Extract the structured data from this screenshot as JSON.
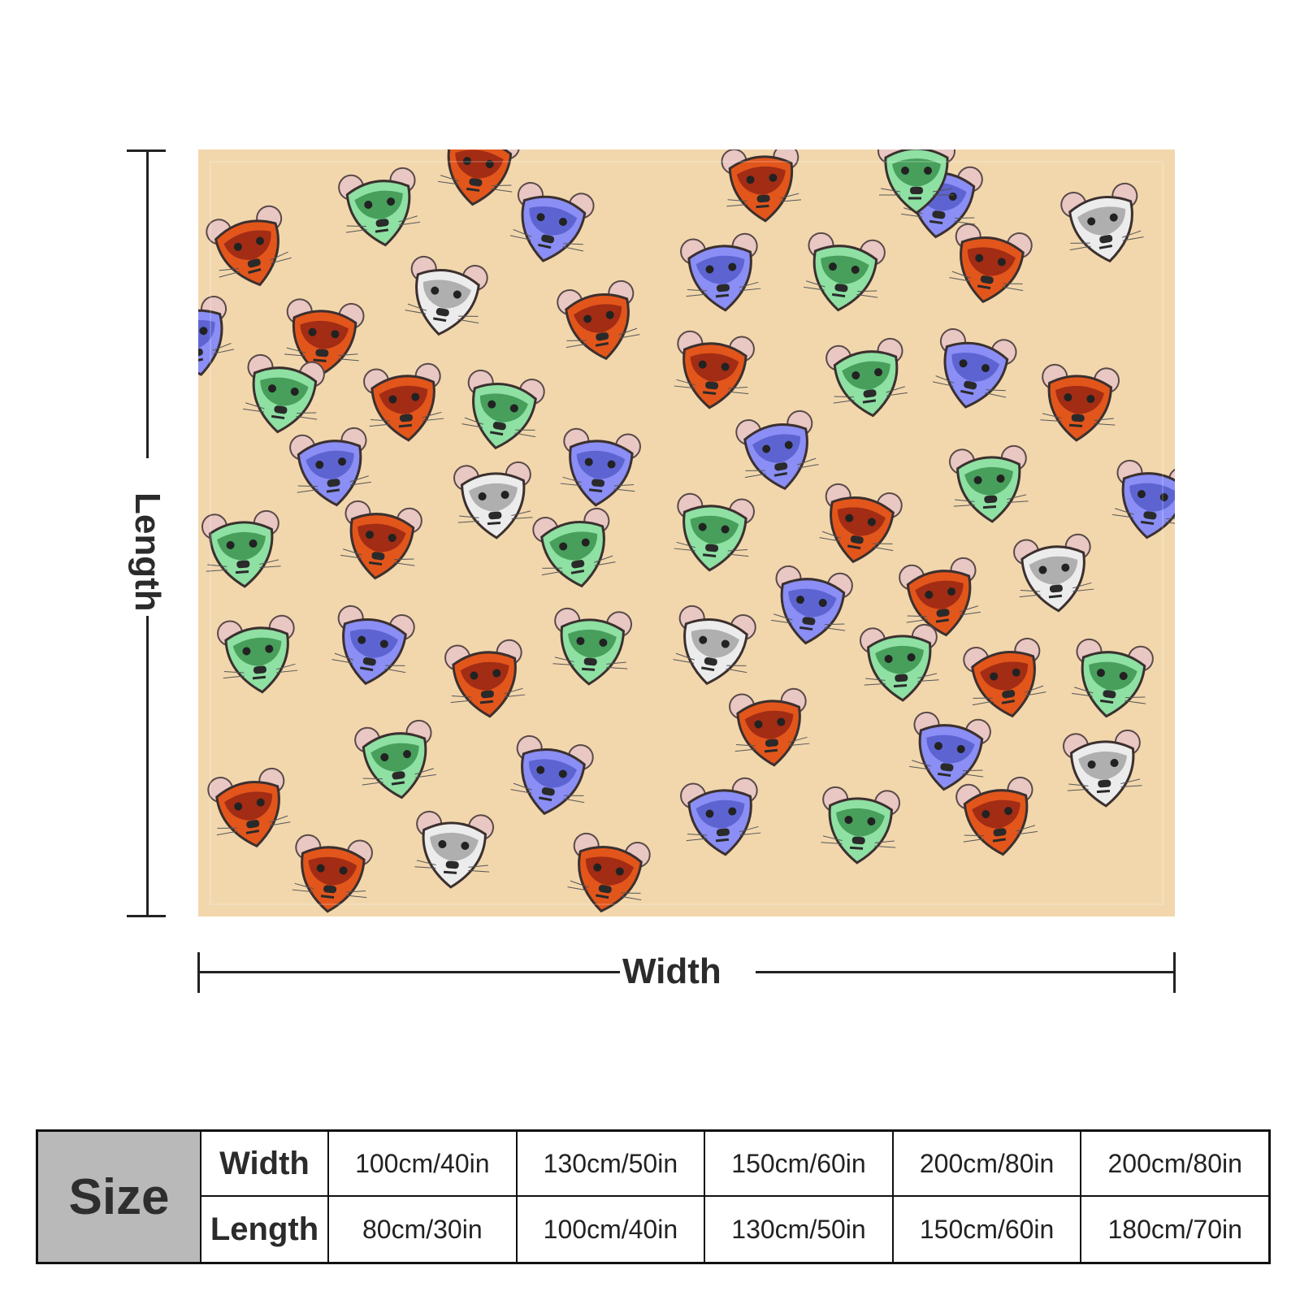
{
  "labels": {
    "length": "Length",
    "width": "Width"
  },
  "colors": {
    "blanket_bg": "#f2d7ad",
    "orange": "#e2561c",
    "green": "#8ee0a3",
    "blue": "#8a8ef5",
    "white": "#ececec"
  },
  "size_table": {
    "header": "Size",
    "width_label": "Width",
    "length_label": "Length",
    "widths": [
      "100cm/40in",
      "130cm/50in",
      "150cm/60in",
      "200cm/80in",
      "200cm/80in"
    ],
    "lengths": [
      "80cm/30in",
      "100cm/40in",
      "130cm/50in",
      "150cm/60in",
      "180cm/70in"
    ]
  }
}
